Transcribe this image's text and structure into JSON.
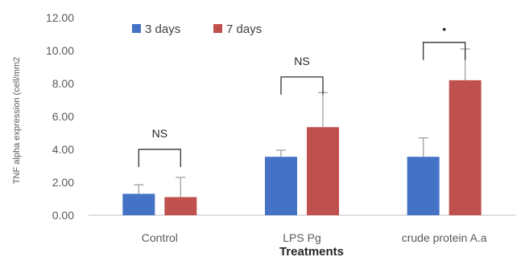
{
  "chart_data": {
    "type": "bar",
    "categories": [
      "Control",
      "LPS Pg",
      "crude protein A.a"
    ],
    "series": [
      {
        "name": "3 days",
        "color": "#4472c4",
        "values": [
          1.3,
          3.55,
          3.55
        ],
        "errors": [
          0.55,
          0.4,
          1.15
        ]
      },
      {
        "name": "7 days",
        "color": "#c0504d",
        "values": [
          1.1,
          5.35,
          8.2
        ],
        "errors": [
          1.2,
          2.1,
          1.9
        ]
      }
    ],
    "ylim": [
      0,
      12
    ],
    "yticks": [
      "0.00",
      "2.00",
      "4.00",
      "6.00",
      "8.00",
      "10.00",
      "12.00"
    ],
    "xlabel": "Treatments",
    "ylabel": "TNF alpha expression (cell/mm2",
    "legend_position": "top-left",
    "grid": false,
    "significance": [
      {
        "category": "Control",
        "label": "NS",
        "bracket_y": 4.0
      },
      {
        "category": "LPS Pg",
        "label": "NS",
        "bracket_y": 8.4
      },
      {
        "category": "crude protein A.a",
        "label": "•",
        "bracket_y": 10.5
      }
    ]
  }
}
